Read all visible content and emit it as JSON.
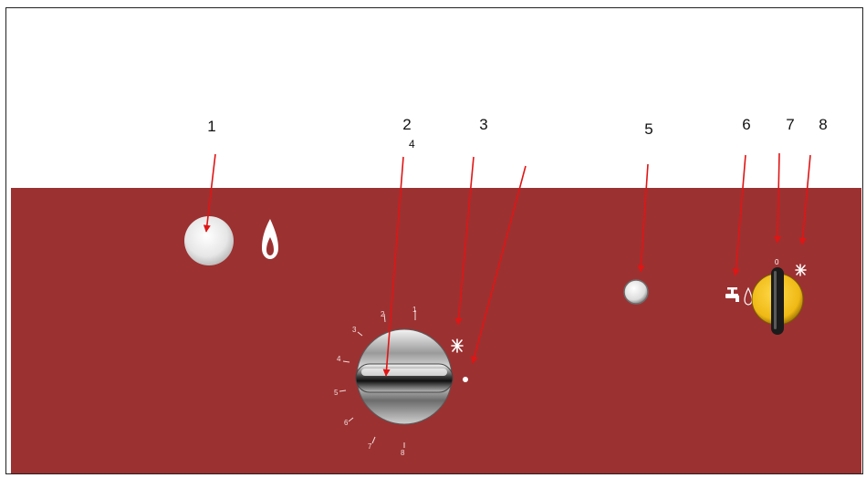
{
  "callouts": {
    "n1": "1",
    "n2": "2",
    "n3": "3",
    "n4": "4",
    "n5": "5",
    "n6": "6",
    "n7": "7",
    "n8": "8"
  },
  "dial": {
    "t1": "1",
    "t2": "2",
    "t3": "3",
    "t4": "4",
    "t5": "5",
    "t6": "6",
    "t7": "7",
    "t8": "8"
  },
  "selector": {
    "zero": "0"
  },
  "icons": {
    "flame": "flame-icon",
    "spark": "spark-icon",
    "dot": "dot-indicator",
    "tap": "water-tap-icon"
  },
  "colors": {
    "panel": "#9c3131",
    "arrow": "#e01515",
    "selector_knob": "#f0c419"
  }
}
